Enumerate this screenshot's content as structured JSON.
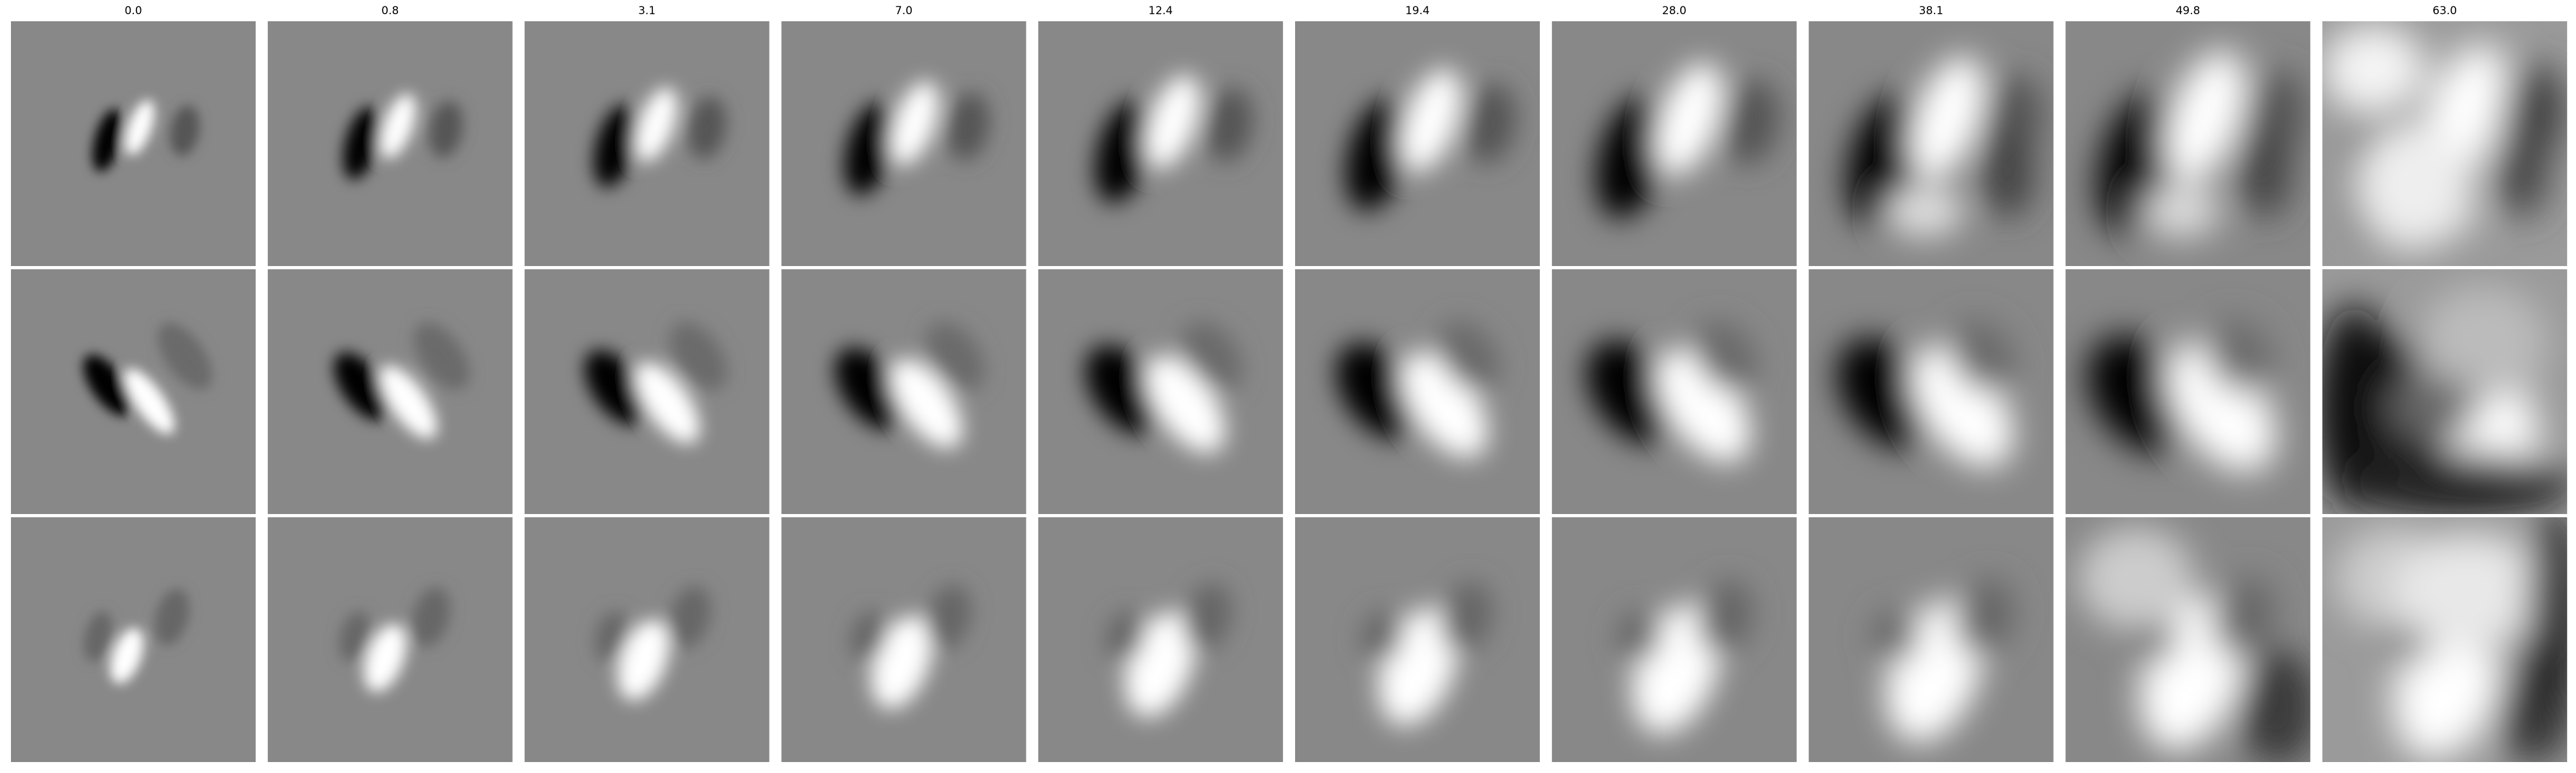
{
  "chart_data": {
    "type": "heatmap",
    "title": "",
    "xlabel": "",
    "ylabel": "",
    "grid": false,
    "legend": "none",
    "colormap": "gray",
    "rows": 3,
    "columns": [
      {
        "label": "0.0"
      },
      {
        "label": "0.8"
      },
      {
        "label": "3.1"
      },
      {
        "label": "7.0"
      },
      {
        "label": "12.4"
      },
      {
        "label": "19.4"
      },
      {
        "label": "28.0"
      },
      {
        "label": "38.1"
      },
      {
        "label": "49.8"
      },
      {
        "label": "63.0"
      }
    ]
  }
}
